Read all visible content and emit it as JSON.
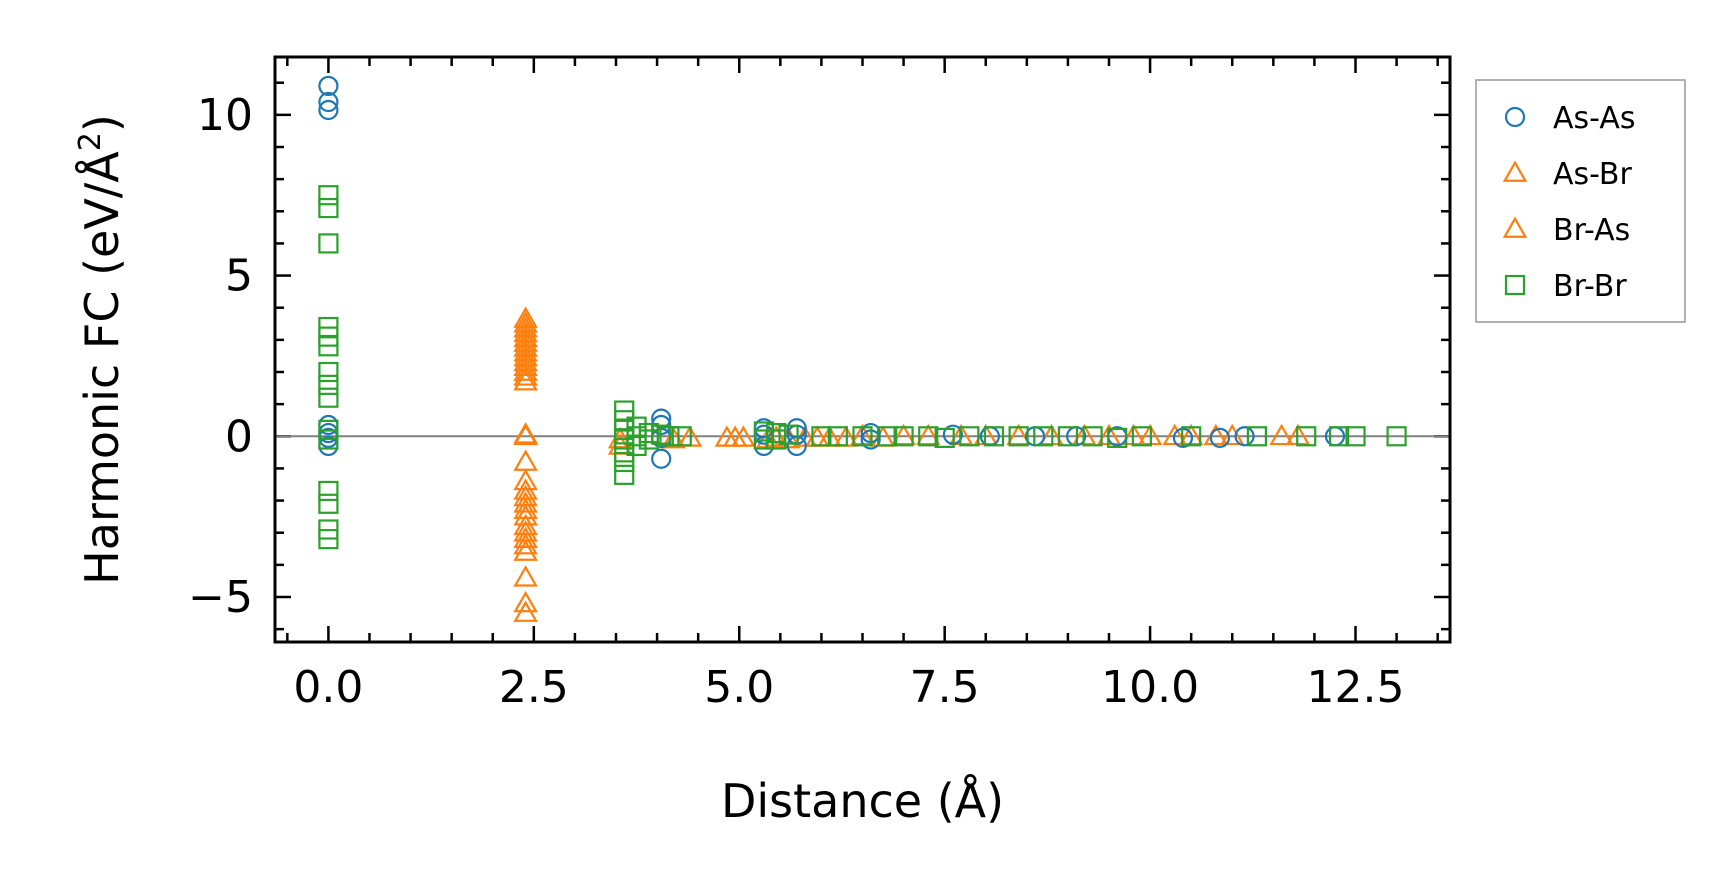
{
  "chart_data": {
    "type": "scatter",
    "title": "",
    "xlabel": "Distance (Å)",
    "ylabel_main": "Harmonic FC (eV/Å",
    "ylabel_sup": "2",
    "ylabel_close": ")",
    "xlim": [
      -0.65,
      13.65
    ],
    "ylim": [
      -6.4,
      11.8
    ],
    "xticks": [
      0.0,
      2.5,
      5.0,
      7.5,
      10.0,
      12.5
    ],
    "xtick_labels": [
      "0.0",
      "2.5",
      "5.0",
      "7.5",
      "10.0",
      "12.5"
    ],
    "yticks": [
      -5,
      0,
      5,
      10
    ],
    "ytick_labels": [
      "−5",
      "0",
      "5",
      "10"
    ],
    "zero_line": 0,
    "legend_position": "outside-right-top",
    "series": [
      {
        "name": "As-As",
        "marker": "circle",
        "color": "#1f77b4",
        "points": [
          [
            0,
            10.9
          ],
          [
            0,
            10.4
          ],
          [
            0,
            10.15
          ],
          [
            0,
            0.35
          ],
          [
            0,
            0.1
          ],
          [
            0,
            -0.05
          ],
          [
            0,
            -0.3
          ],
          [
            4.05,
            0.55
          ],
          [
            4.05,
            0.35
          ],
          [
            4.05,
            -0.05
          ],
          [
            4.05,
            -0.7
          ],
          [
            5.3,
            0.25
          ],
          [
            5.3,
            0.05
          ],
          [
            5.3,
            -0.3
          ],
          [
            5.7,
            0.25
          ],
          [
            5.7,
            0.05
          ],
          [
            5.7,
            -0.3
          ],
          [
            6.6,
            0.1
          ],
          [
            6.6,
            -0.1
          ],
          [
            7.6,
            0.05
          ],
          [
            8.05,
            0.0
          ],
          [
            8.6,
            0.0
          ],
          [
            9.1,
            0.0
          ],
          [
            9.6,
            0.0
          ],
          [
            10.4,
            -0.05
          ],
          [
            10.85,
            -0.05
          ],
          [
            11.15,
            0.0
          ],
          [
            12.25,
            0.0
          ]
        ]
      },
      {
        "name": "As-Br",
        "marker": "triangle",
        "color": "#ff7f0e",
        "points": [
          [
            2.4,
            3.5
          ],
          [
            2.4,
            3.2
          ],
          [
            2.4,
            2.9
          ],
          [
            2.4,
            2.6
          ],
          [
            2.4,
            2.3
          ],
          [
            2.4,
            2.0
          ],
          [
            2.4,
            1.7
          ],
          [
            2.4,
            0.0
          ],
          [
            2.4,
            -0.8
          ],
          [
            2.4,
            -1.7
          ],
          [
            2.4,
            -2.1
          ],
          [
            2.4,
            -2.5
          ],
          [
            2.4,
            -3.0
          ],
          [
            2.4,
            -3.4
          ],
          [
            2.4,
            -4.4
          ],
          [
            3.55,
            -0.3
          ],
          [
            4.2,
            -0.1
          ],
          [
            4.85,
            -0.05
          ],
          [
            5.05,
            -0.05
          ],
          [
            5.35,
            -0.1
          ],
          [
            5.6,
            -0.1
          ],
          [
            5.95,
            -0.05
          ],
          [
            6.3,
            -0.05
          ],
          [
            6.75,
            -0.05
          ],
          [
            7.3,
            0.0
          ],
          [
            8.0,
            0.0
          ],
          [
            8.8,
            0.0
          ],
          [
            9.5,
            0.0
          ],
          [
            10.0,
            0.0
          ],
          [
            10.5,
            0.0
          ],
          [
            11.0,
            0.0
          ],
          [
            11.6,
            0.0
          ]
        ]
      },
      {
        "name": "Br-As",
        "marker": "triangle",
        "color": "#ff7f0e",
        "points": [
          [
            2.4,
            3.65
          ],
          [
            2.4,
            3.35
          ],
          [
            2.4,
            3.05
          ],
          [
            2.4,
            2.75
          ],
          [
            2.4,
            2.45
          ],
          [
            2.4,
            2.15
          ],
          [
            2.4,
            1.85
          ],
          [
            2.4,
            0.05
          ],
          [
            2.4,
            -1.4
          ],
          [
            2.4,
            -1.9
          ],
          [
            2.4,
            -2.3
          ],
          [
            2.4,
            -2.8
          ],
          [
            2.4,
            -3.2
          ],
          [
            2.4,
            -3.6
          ],
          [
            2.4,
            -5.2
          ],
          [
            2.4,
            -5.5
          ],
          [
            3.55,
            -0.1
          ],
          [
            4.4,
            -0.05
          ],
          [
            4.95,
            -0.05
          ],
          [
            5.45,
            -0.05
          ],
          [
            5.8,
            -0.05
          ],
          [
            6.1,
            -0.05
          ],
          [
            6.5,
            0.0
          ],
          [
            7.0,
            0.0
          ],
          [
            7.7,
            0.0
          ],
          [
            8.4,
            0.0
          ],
          [
            9.2,
            0.0
          ],
          [
            9.8,
            0.0
          ],
          [
            10.3,
            0.0
          ],
          [
            10.8,
            0.0
          ],
          [
            11.8,
            0.0
          ]
        ]
      },
      {
        "name": "Br-Br",
        "marker": "square",
        "color": "#2ca02c",
        "points": [
          [
            0,
            7.5
          ],
          [
            0,
            7.1
          ],
          [
            0,
            6.0
          ],
          [
            0,
            3.4
          ],
          [
            0,
            3.1
          ],
          [
            0,
            2.8
          ],
          [
            0,
            2.0
          ],
          [
            0,
            1.6
          ],
          [
            0,
            1.2
          ],
          [
            0,
            0.2
          ],
          [
            0,
            -0.1
          ],
          [
            0,
            -1.7
          ],
          [
            0,
            -2.1
          ],
          [
            0,
            -2.9
          ],
          [
            0,
            -3.2
          ],
          [
            3.6,
            0.8
          ],
          [
            3.6,
            0.5
          ],
          [
            3.6,
            0.2
          ],
          [
            3.6,
            -0.1
          ],
          [
            3.6,
            -0.5
          ],
          [
            3.6,
            -0.8
          ],
          [
            3.6,
            -1.2
          ],
          [
            3.75,
            0.3
          ],
          [
            3.75,
            0.0
          ],
          [
            3.75,
            -0.3
          ],
          [
            3.9,
            0.1
          ],
          [
            3.9,
            -0.1
          ],
          [
            4.05,
            0.05
          ],
          [
            4.15,
            0.0
          ],
          [
            4.3,
            0.0
          ],
          [
            5.3,
            0.15
          ],
          [
            5.3,
            -0.1
          ],
          [
            5.45,
            0.1
          ],
          [
            5.45,
            -0.1
          ],
          [
            5.6,
            0.05
          ],
          [
            6.0,
            0.0
          ],
          [
            6.2,
            0.0
          ],
          [
            6.5,
            0.0
          ],
          [
            6.8,
            0.0
          ],
          [
            7.0,
            0.0
          ],
          [
            7.3,
            0.0
          ],
          [
            7.5,
            -0.05
          ],
          [
            7.8,
            0.0
          ],
          [
            8.1,
            0.0
          ],
          [
            8.4,
            0.0
          ],
          [
            8.7,
            0.0
          ],
          [
            9.0,
            0.0
          ],
          [
            9.3,
            0.0
          ],
          [
            9.6,
            -0.05
          ],
          [
            9.9,
            0.0
          ],
          [
            10.5,
            0.0
          ],
          [
            11.3,
            0.0
          ],
          [
            11.9,
            0.0
          ],
          [
            12.3,
            0.0
          ],
          [
            12.5,
            0.0
          ],
          [
            13.0,
            0.0
          ]
        ]
      }
    ]
  }
}
